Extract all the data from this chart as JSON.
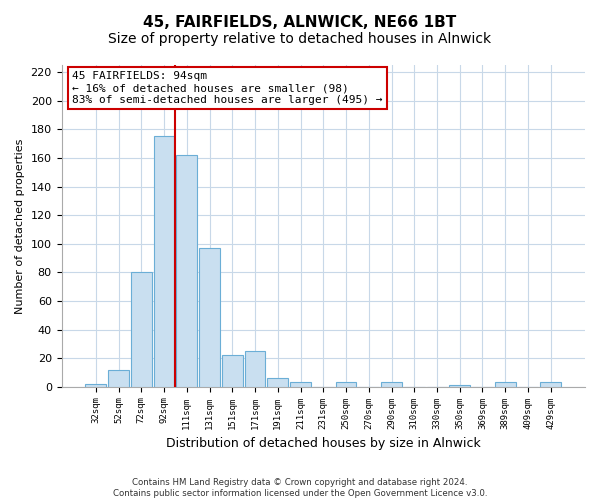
{
  "title": "45, FAIRFIELDS, ALNWICK, NE66 1BT",
  "subtitle": "Size of property relative to detached houses in Alnwick",
  "xlabel": "Distribution of detached houses by size in Alnwick",
  "ylabel": "Number of detached properties",
  "bar_labels": [
    "32sqm",
    "52sqm",
    "72sqm",
    "92sqm",
    "111sqm",
    "131sqm",
    "151sqm",
    "171sqm",
    "191sqm",
    "211sqm",
    "231sqm",
    "250sqm",
    "270sqm",
    "290sqm",
    "310sqm",
    "330sqm",
    "350sqm",
    "369sqm",
    "389sqm",
    "409sqm",
    "429sqm"
  ],
  "bar_values": [
    2,
    12,
    80,
    175,
    162,
    97,
    22,
    25,
    6,
    3,
    0,
    3,
    0,
    3,
    0,
    0,
    1,
    0,
    3,
    0,
    3
  ],
  "bar_color": "#c9dff0",
  "bar_edge_color": "#6baed6",
  "ylim": [
    0,
    225
  ],
  "yticks": [
    0,
    20,
    40,
    60,
    80,
    100,
    120,
    140,
    160,
    180,
    200,
    220
  ],
  "annotation_box_text": "45 FAIRFIELDS: 94sqm\n← 16% of detached houses are smaller (98)\n83% of semi-detached houses are larger (495) →",
  "property_line_x": 3.5,
  "property_line_color": "#cc0000",
  "footer_line1": "Contains HM Land Registry data © Crown copyright and database right 2024.",
  "footer_line2": "Contains public sector information licensed under the Open Government Licence v3.0.",
  "bg_color": "#ffffff",
  "grid_color": "#c8d8e8",
  "title_fontsize": 11,
  "subtitle_fontsize": 10
}
